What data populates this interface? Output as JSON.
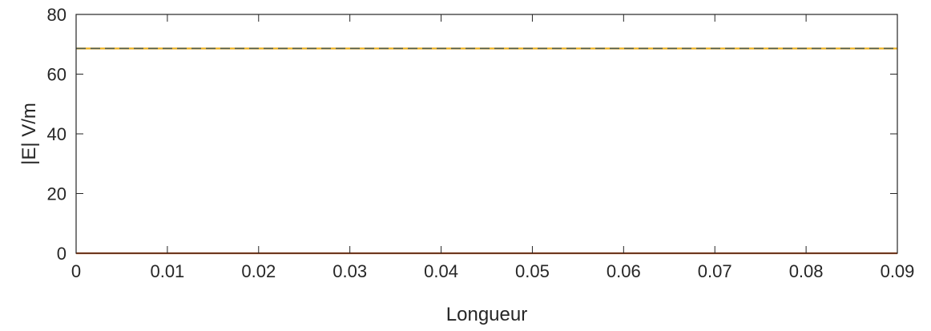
{
  "chart_data": {
    "type": "line",
    "title": "",
    "xlabel": "Longueur",
    "ylabel": "|E| V/m",
    "xlim": [
      0,
      0.09
    ],
    "ylim": [
      0,
      80
    ],
    "x_ticks": [
      "0",
      "0.01",
      "0.02",
      "0.03",
      "0.04",
      "0.05",
      "0.06",
      "0.07",
      "0.08",
      "0.09"
    ],
    "y_ticks": [
      "0",
      "20",
      "40",
      "60",
      "80"
    ],
    "grid": false,
    "legend": "none",
    "series": [
      {
        "x": [
          0,
          0.09
        ],
        "y": [
          68.6,
          68.6
        ],
        "color": "#EDB120",
        "style": "solid"
      },
      {
        "x": [
          0,
          0.09
        ],
        "y": [
          68.6,
          68.6
        ],
        "color": "#4d5a4a",
        "style": "dashed"
      },
      {
        "x": [
          0,
          0.09
        ],
        "y": [
          0,
          0
        ],
        "color": "#D95319",
        "style": "solid"
      }
    ]
  }
}
